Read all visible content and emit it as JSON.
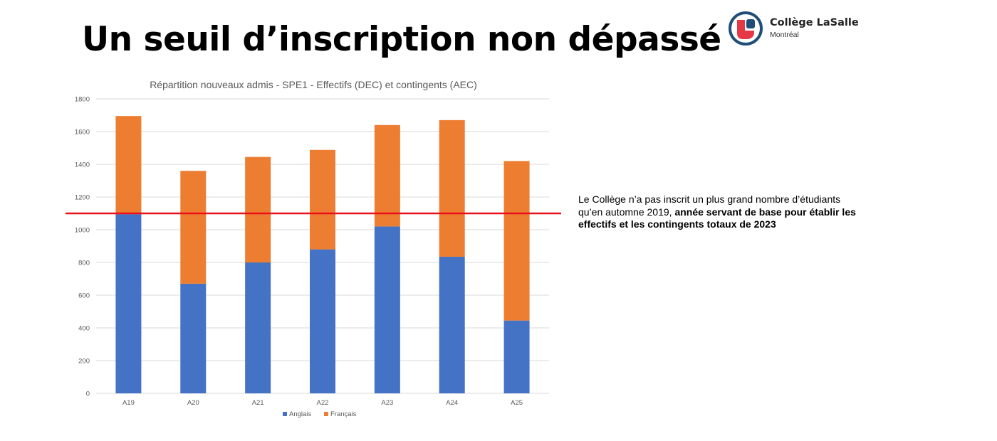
{
  "slide": {
    "title": "Un seuil d’inscription non dépassé"
  },
  "logo": {
    "name": "Collège LaSalle",
    "sub": "Montréal",
    "colors": {
      "ring": "#1f4e79",
      "mark": "#e63946"
    }
  },
  "note": {
    "text_regular": "Le Collège n’a pas inscrit un plus grand nombre d’étudiants qu’en automne 2019, ",
    "text_bold": "année servant de base pour établir les effectifs et les contingents totaux de 2023"
  },
  "chart_data": {
    "type": "bar",
    "stacked": true,
    "title": "Répartition nouveaux admis - SPE1 - Effectifs (DEC) et contingents (AEC)",
    "xlabel": "",
    "ylabel": "",
    "categories": [
      "A19",
      "A20",
      "A21",
      "A22",
      "A23",
      "A24",
      "A25"
    ],
    "series": [
      {
        "name": "Anglais",
        "color": "#4472c4",
        "values": [
          1095,
          670,
          800,
          880,
          1020,
          835,
          445
        ]
      },
      {
        "name": "Français",
        "color": "#ed7d31",
        "values": [
          600,
          690,
          645,
          608,
          620,
          835,
          975
        ]
      }
    ],
    "ylim": [
      0,
      1800
    ],
    "yticks": [
      0,
      200,
      400,
      600,
      800,
      1000,
      1200,
      1400,
      1600,
      1800
    ],
    "grid": true,
    "legend_position": "bottom",
    "threshold": {
      "value": 1100,
      "color": "#e8101a"
    }
  }
}
